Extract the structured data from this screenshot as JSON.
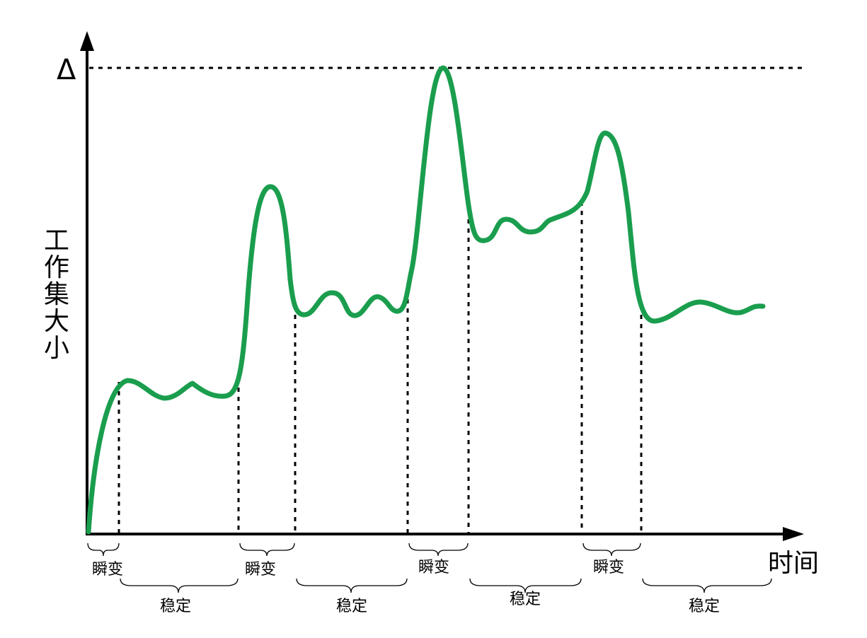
{
  "diagram": {
    "delta_label": "Δ",
    "x_axis_label": "时间",
    "y_axis_label": "工作集大小",
    "curve_color": "#1a9e4e",
    "phases": [
      {
        "label": "瞬变",
        "kind": "transient"
      },
      {
        "label": "稳定",
        "kind": "stable"
      },
      {
        "label": "瞬变",
        "kind": "transient"
      },
      {
        "label": "稳定",
        "kind": "stable"
      },
      {
        "label": "瞬变",
        "kind": "transient"
      },
      {
        "label": "稳定",
        "kind": "stable"
      },
      {
        "label": "瞬变",
        "kind": "transient"
      },
      {
        "label": "稳定",
        "kind": "stable"
      }
    ]
  }
}
